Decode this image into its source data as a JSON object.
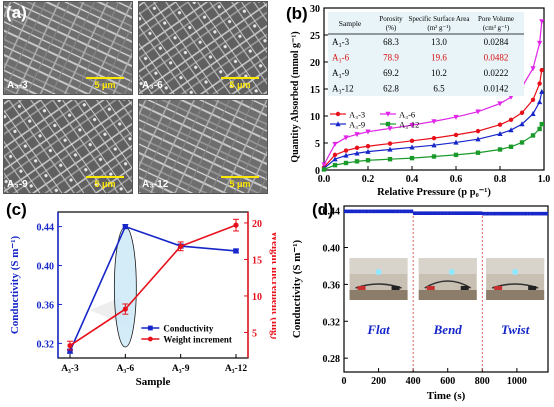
{
  "panel_labels": {
    "a": "(a)",
    "b": "(b)",
    "c": "(c)",
    "d": "(d)"
  },
  "panel_a": {
    "images": [
      {
        "label": "A₃-3",
        "scale": "5 μm"
      },
      {
        "label": "A₃-6",
        "scale": "5 μm"
      },
      {
        "label": "A₃-9",
        "scale": "5 μm"
      },
      {
        "label": "A₃-12",
        "scale": "5 μm"
      }
    ]
  },
  "chart_data": [
    {
      "id": "b",
      "type": "line",
      "xlabel": "Relative Pressure (p p₀⁻¹)",
      "ylabel": "Quantity Absorbed (mmol g⁻¹)",
      "xlim": [
        0.0,
        1.0
      ],
      "ylim": [
        0,
        30
      ],
      "xticks": [
        "0.0",
        "0.2",
        "0.4",
        "0.6",
        "0.8",
        "1.0"
      ],
      "yticks": [
        "0",
        "5",
        "10",
        "15",
        "20",
        "25",
        "30"
      ],
      "series": [
        {
          "name": "A₃-3",
          "color": "#e8101a",
          "marker": "circle",
          "x": [
            0.0,
            0.05,
            0.1,
            0.15,
            0.2,
            0.3,
            0.4,
            0.5,
            0.6,
            0.7,
            0.8,
            0.85,
            0.9,
            0.95,
            0.98,
            0.99
          ],
          "y": [
            0.5,
            2.8,
            3.6,
            4.1,
            4.4,
            4.9,
            5.4,
            5.9,
            6.5,
            7.2,
            8.4,
            9.3,
            10.6,
            13.0,
            16.0,
            18.5
          ]
        },
        {
          "name": "A₃-6",
          "color": "#e024e8",
          "marker": "triangle-down",
          "x": [
            0.0,
            0.05,
            0.1,
            0.15,
            0.2,
            0.3,
            0.4,
            0.5,
            0.6,
            0.7,
            0.8,
            0.85,
            0.9,
            0.95,
            0.98,
            0.99
          ],
          "y": [
            1.0,
            4.8,
            6.0,
            6.6,
            7.1,
            7.7,
            8.3,
            9.0,
            9.8,
            10.8,
            12.3,
            13.5,
            15.4,
            18.8,
            23.5,
            27.5
          ]
        },
        {
          "name": "A₃-9",
          "color": "#1626c8",
          "marker": "triangle-up",
          "x": [
            0.0,
            0.05,
            0.1,
            0.15,
            0.2,
            0.3,
            0.4,
            0.5,
            0.6,
            0.7,
            0.8,
            0.85,
            0.9,
            0.95,
            0.98,
            0.99
          ],
          "y": [
            0.3,
            2.0,
            2.7,
            3.1,
            3.4,
            3.8,
            4.2,
            4.6,
            5.1,
            5.7,
            6.7,
            7.4,
            8.5,
            10.4,
            12.6,
            14.5
          ]
        },
        {
          "name": "A₃-12",
          "color": "#1a9a2a",
          "marker": "square",
          "x": [
            0.0,
            0.05,
            0.1,
            0.15,
            0.2,
            0.3,
            0.4,
            0.5,
            0.6,
            0.7,
            0.8,
            0.85,
            0.9,
            0.95,
            0.98,
            0.99
          ],
          "y": [
            0.1,
            0.9,
            1.3,
            1.6,
            1.8,
            2.0,
            2.2,
            2.5,
            2.8,
            3.2,
            3.8,
            4.3,
            5.1,
            6.4,
            7.6,
            8.5
          ]
        }
      ],
      "table": {
        "headers": [
          "Sample",
          "Porosity (%)",
          "Specific Surface Area (m² g⁻¹)",
          "Pore Volume (cm³ g⁻¹)"
        ],
        "rows": [
          [
            "A₃-3",
            "68.3",
            "13.0",
            "0.0284"
          ],
          [
            "A₃-6",
            "78.9",
            "19.6",
            "0.0482"
          ],
          [
            "A₃-9",
            "69.2",
            "10.2",
            "0.0222"
          ],
          [
            "A₃-12",
            "62.8",
            "6.5",
            "0.0142"
          ]
        ],
        "highlight_row": 1,
        "highlight_color": "#d81010"
      },
      "legend": "center-left"
    },
    {
      "id": "c",
      "type": "line",
      "xlabel": "Sample",
      "ylabel": "Conductivity (S m⁻¹)",
      "y2label": "Weight increment (mg)",
      "categories": [
        "A₃-3",
        "A₃-6",
        "A₃-9",
        "A₃-12"
      ],
      "ylim": [
        0.305,
        0.455
      ],
      "yticks": [
        "0.32",
        "0.36",
        "0.40",
        "0.44"
      ],
      "y2lim": [
        1.5,
        21.5
      ],
      "y2ticks": [
        "5",
        "10",
        "15",
        "20"
      ],
      "series": [
        {
          "name": "Conductivity",
          "color": "#1626c8",
          "axis": "left",
          "marker": "square",
          "values": [
            0.312,
            0.44,
            0.42,
            0.415
          ],
          "errors": [
            0.002,
            0.002,
            0.002,
            0.002
          ]
        },
        {
          "name": "Weight increment",
          "color": "#e8101a",
          "axis": "right",
          "marker": "circle",
          "values": [
            3.2,
            8.2,
            16.8,
            19.7
          ],
          "errors": [
            0.6,
            0.7,
            0.6,
            0.8
          ]
        }
      ],
      "legend": "lower-right"
    },
    {
      "id": "d",
      "type": "scatter",
      "xlabel": "Time (s)",
      "ylabel": "Conductivity (S m⁻¹)",
      "xlim": [
        0,
        1180
      ],
      "ylim": [
        0.265,
        0.445
      ],
      "xticks": [
        "0",
        "200",
        "400",
        "600",
        "800",
        "1000"
      ],
      "yticks": [
        "0.28",
        "0.32",
        "0.36",
        "0.40",
        "0.44"
      ],
      "series": [
        {
          "name": "",
          "color": "#1626c8",
          "marker": "square",
          "segments": [
            {
              "x_start": 10,
              "x_end": 395,
              "step": 20,
              "y": 0.44
            },
            {
              "x_start": 410,
              "x_end": 795,
              "step": 20,
              "y": 0.438
            },
            {
              "x_start": 810,
              "x_end": 1175,
              "step": 20,
              "y": 0.4375
            }
          ]
        }
      ],
      "dividers": [
        400,
        800
      ],
      "divider_color": "#e05050",
      "annotations": [
        "Flat",
        "Bend",
        "Twist"
      ],
      "annotation_color": "#1626c8"
    }
  ]
}
